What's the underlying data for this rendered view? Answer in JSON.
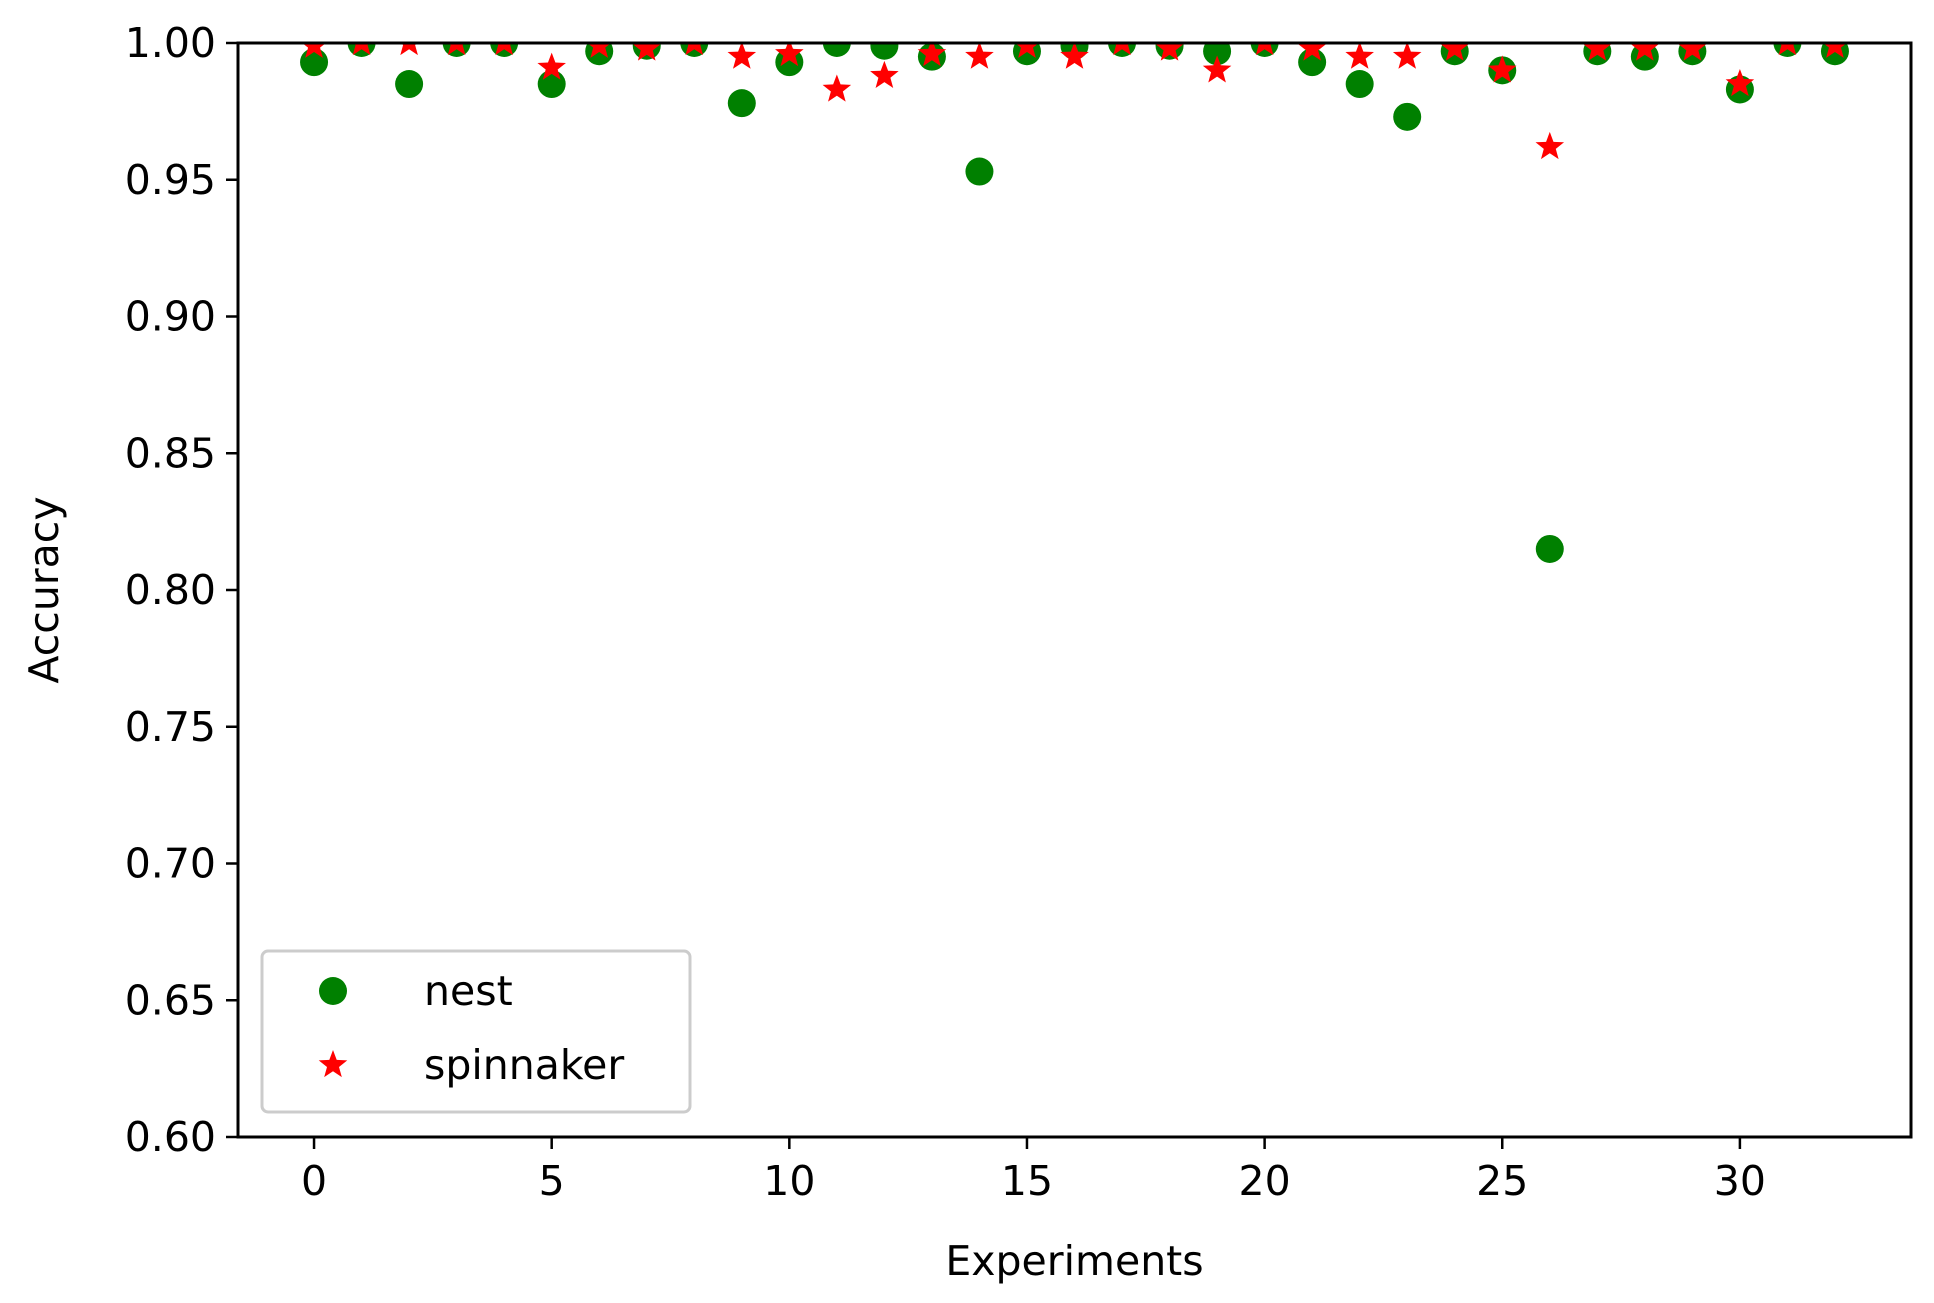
{
  "chart_data": {
    "type": "scatter",
    "title": "",
    "xlabel": "Experiments",
    "ylabel": "Accuracy",
    "xlim": [
      -1.6,
      33.6
    ],
    "ylim": [
      0.6,
      1.0
    ],
    "xticks": [
      0,
      5,
      10,
      15,
      20,
      25,
      30
    ],
    "xtick_labels": [
      "0",
      "5",
      "10",
      "15",
      "20",
      "25",
      "30"
    ],
    "yticks": [
      0.6,
      0.65,
      0.7,
      0.75,
      0.8,
      0.85,
      0.9,
      0.95,
      1.0
    ],
    "ytick_labels": [
      "0.60",
      "0.65",
      "0.70",
      "0.75",
      "0.80",
      "0.85",
      "0.90",
      "0.95",
      "1.00"
    ],
    "grid": false,
    "legend_position": "lower-left",
    "x": [
      0,
      1,
      2,
      3,
      4,
      5,
      6,
      7,
      8,
      9,
      10,
      11,
      12,
      13,
      14,
      15,
      16,
      17,
      18,
      19,
      20,
      21,
      22,
      23,
      24,
      25,
      26,
      27,
      28,
      29,
      30,
      31,
      32
    ],
    "series": [
      {
        "name": "nest",
        "marker": "circle",
        "color": "#008000",
        "values": [
          0.993,
          1.0,
          0.985,
          1.0,
          1.0,
          0.985,
          0.997,
          0.999,
          1.0,
          0.978,
          0.993,
          1.0,
          0.999,
          0.995,
          0.953,
          0.997,
          0.999,
          1.0,
          0.999,
          0.997,
          1.0,
          0.993,
          0.985,
          0.973,
          0.997,
          0.99,
          0.815,
          0.997,
          0.995,
          0.997,
          0.983,
          1.0,
          0.997
        ]
      },
      {
        "name": "spinnaker",
        "marker": "star",
        "color": "#ff0000",
        "values": [
          0.999,
          1.0,
          1.0,
          1.0,
          1.0,
          0.991,
          0.999,
          0.998,
          1.0,
          0.995,
          0.996,
          0.983,
          0.988,
          0.996,
          0.995,
          0.999,
          0.995,
          1.0,
          0.998,
          0.99,
          1.0,
          0.998,
          0.995,
          0.995,
          0.998,
          0.99,
          0.962,
          0.998,
          0.998,
          0.998,
          0.985,
          1.0,
          0.999
        ]
      }
    ]
  }
}
